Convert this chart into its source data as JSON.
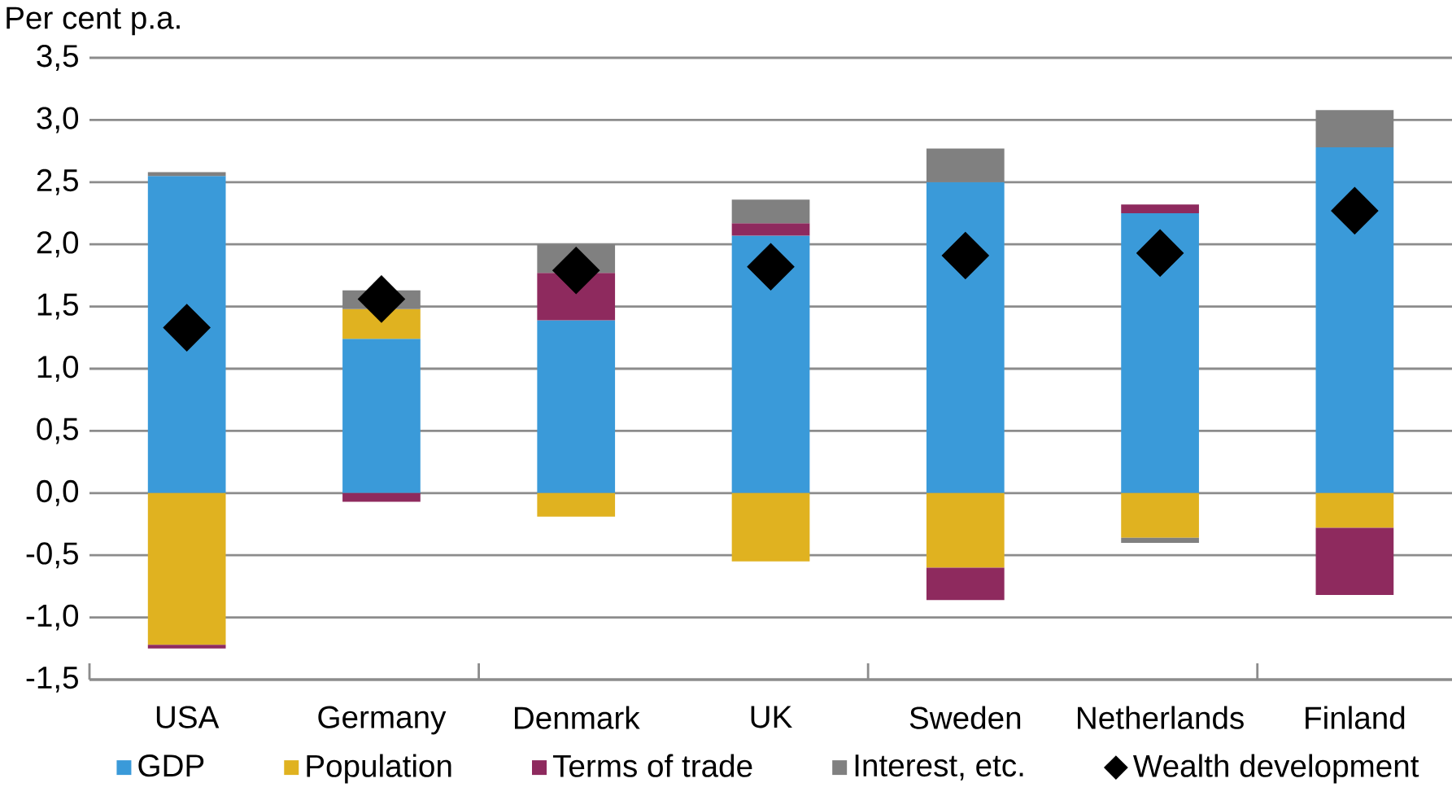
{
  "chart_data": {
    "type": "bar",
    "stacked": true,
    "ylabel": "Per cent p.a.",
    "categories": [
      "USA",
      "Germany",
      "Denmark",
      "UK",
      "Sweden",
      "Netherlands",
      "Finland"
    ],
    "series": [
      {
        "name": "GDP",
        "color": "#3a9ad9",
        "values": [
          2.55,
          1.24,
          1.39,
          2.07,
          2.5,
          2.25,
          2.78
        ]
      },
      {
        "name": "Population",
        "color": "#e0b220",
        "values": [
          -1.22,
          0.24,
          -0.19,
          -0.55,
          -0.6,
          -0.36,
          -0.28
        ]
      },
      {
        "name": "Terms of trade",
        "color": "#8e2a5e",
        "values": [
          -0.03,
          -0.07,
          0.38,
          0.1,
          -0.26,
          0.07,
          -0.54
        ]
      },
      {
        "name": "Interest, etc.",
        "color": "#808080",
        "values": [
          0.03,
          0.15,
          0.23,
          0.19,
          0.27,
          -0.04,
          0.3
        ]
      },
      {
        "name": "Wealth development",
        "type": "scatter",
        "marker": "diamond",
        "color": "#000000",
        "values": [
          1.33,
          1.56,
          1.79,
          1.82,
          1.91,
          1.93,
          2.27
        ]
      }
    ],
    "ylim": [
      -1.5,
      3.5
    ],
    "yticks": [
      {
        "value": -1.5,
        "label": "-1,5"
      },
      {
        "value": -1.0,
        "label": "-1,0"
      },
      {
        "value": -0.5,
        "label": "-0,5"
      },
      {
        "value": 0,
        "label": "0,0"
      },
      {
        "value": 0.5,
        "label": "0,5"
      },
      {
        "value": 1.0,
        "label": "1,0"
      },
      {
        "value": 1.5,
        "label": "1,5"
      },
      {
        "value": 2.0,
        "label": "2,0"
      },
      {
        "value": 2.5,
        "label": "2,5"
      },
      {
        "value": 3.0,
        "label": "3,0"
      },
      {
        "value": 3.5,
        "label": "3,5"
      }
    ],
    "grid": "y",
    "legend": "bottom"
  }
}
